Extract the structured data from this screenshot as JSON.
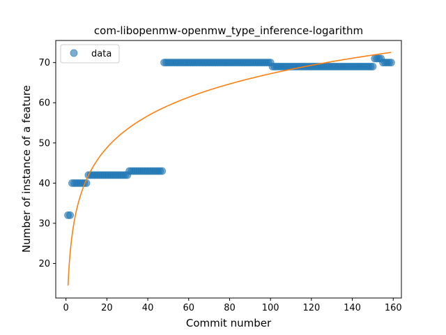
{
  "chart_data": {
    "type": "scatter",
    "title": "com-libopenmw-openmw_type_inference-logarithm",
    "xlabel": "Commit number",
    "ylabel": "Number of instance of a feature",
    "xlim": [
      -5,
      164
    ],
    "ylim": [
      11.4,
      75.5
    ],
    "xticks": [
      0,
      20,
      40,
      60,
      80,
      100,
      120,
      140,
      160
    ],
    "yticks": [
      20,
      30,
      40,
      50,
      60,
      70
    ],
    "legend": {
      "placement": "top-left",
      "entries": [
        "data"
      ]
    },
    "grid": false,
    "colors": {
      "data": "#1f77b4",
      "fit": "#ff7f0e"
    },
    "series": [
      {
        "name": "data",
        "kind": "scatter",
        "segments": [
          {
            "x_from": 1,
            "x_to": 2,
            "y": 32
          },
          {
            "x_from": 3,
            "x_to": 10,
            "y": 40
          },
          {
            "x_from": 11,
            "x_to": 30,
            "y": 42
          },
          {
            "x_from": 31,
            "x_to": 47,
            "y": 43
          },
          {
            "x_from": 48,
            "x_to": 100,
            "y": 70
          },
          {
            "x_from": 101,
            "x_to": 150,
            "y": 69
          },
          {
            "x_from": 151,
            "x_to": 154,
            "y": 71
          },
          {
            "x_from": 155,
            "x_to": 159,
            "y": 70
          }
        ]
      },
      {
        "kind": "line",
        "model": "logarithmic",
        "a": 14.5,
        "b": 11.45,
        "x_range": [
          1,
          159
        ]
      }
    ]
  }
}
